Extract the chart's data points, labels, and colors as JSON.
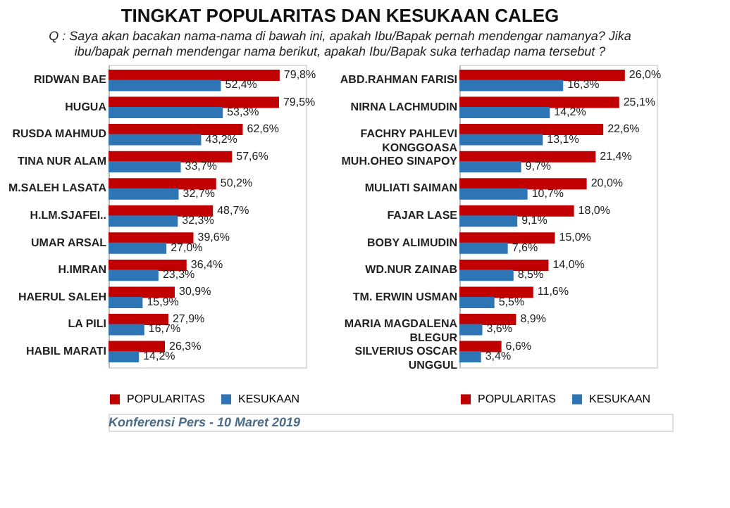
{
  "chart_data": [
    {
      "type": "bar",
      "orientation": "horizontal",
      "title": "TINGKAT POPULARITAS DAN KESUKAAN CALEG",
      "subtitle": "Q : Saya akan bacakan nama-nama di bawah ini, apakah Ibu/Bapak pernah mendengar namanya? Jika ibu/bapak pernah mendengar nama berikut, apakah Ibu/Bapak suka terhadap nama tersebut ?",
      "annotations": [
        "Konferensi Pers - 10 Maret 2019"
      ],
      "categories": [
        "RIDWAN BAE",
        "HUGUA",
        "RUSDA MAHMUD",
        "TINA NUR ALAM",
        "M.SALEH LASATA",
        "H.LM.SJAFEI..",
        "UMAR ARSAL",
        "H.IMRAN",
        "HAERUL SALEH",
        "LA PILI",
        "HABIL MARATI"
      ],
      "series": [
        {
          "name": "POPULARITAS",
          "color": "#c00000",
          "values": [
            79.8,
            79.5,
            62.6,
            57.6,
            50.2,
            48.7,
            39.6,
            36.4,
            30.9,
            27.9,
            26.3
          ],
          "value_labels": [
            "79,8%",
            "79,5%",
            "62,6%",
            "57,6%",
            "50,2%",
            "48,7%",
            "39,6%",
            "36,4%",
            "30,9%",
            "27,9%",
            "26,3%"
          ]
        },
        {
          "name": "KESUKAAN",
          "color": "#2e75b6",
          "values": [
            52.4,
            53.3,
            43.2,
            33.7,
            32.7,
            32.3,
            27.0,
            23.3,
            15.9,
            16.7,
            14.2
          ],
          "value_labels": [
            "52,4%",
            "53,3%",
            "43,2%",
            "33,7%",
            "32,7%",
            "32,3%",
            "27,0%",
            "23,3%",
            "15,9%",
            "16,7%",
            "14,2%"
          ]
        }
      ],
      "xlim": [
        0,
        92
      ],
      "tick_labels": "y",
      "legend": "bottom"
    },
    {
      "type": "bar",
      "orientation": "horizontal",
      "categories": [
        "ABD.RAHMAN FARISI",
        "NIRNA LACHMUDIN",
        "FACHRY PAHLEVI KONGGOASA",
        "MUH.OHEO SINAPOY",
        "MULIATI SAIMAN",
        "FAJAR LASE",
        "BOBY ALIMUDIN",
        "WD.NUR ZAINAB",
        "TM. ERWIN USMAN",
        "MARIA MAGDALENA BLEGUR",
        "SILVERIUS OSCAR UNGGUL"
      ],
      "series": [
        {
          "name": "POPULARITAS",
          "color": "#c00000",
          "values": [
            26.0,
            25.1,
            22.6,
            21.4,
            20.0,
            18.0,
            15.0,
            14.0,
            11.6,
            8.9,
            6.6
          ],
          "value_labels": [
            "26,0%",
            "25,1%",
            "22,6%",
            "21,4%",
            "20,0%",
            "18,0%",
            "15,0%",
            "14,0%",
            "11,6%",
            "8,9%",
            "6,6%"
          ]
        },
        {
          "name": "KESUKAAN",
          "color": "#2e75b6",
          "values": [
            16.3,
            14.2,
            13.1,
            9.7,
            10.7,
            9.1,
            7.6,
            8.5,
            5.5,
            3.6,
            3.4
          ],
          "value_labels": [
            "16,3%",
            "14,2%",
            "13,1%",
            "9,7%",
            "10,7%",
            "9,1%",
            "7,6%",
            "8,5%",
            "5,5%",
            "3,6%",
            "3,4%"
          ]
        }
      ],
      "xlim": [
        0,
        31
      ],
      "tick_labels": "y",
      "legend": "bottom"
    }
  ]
}
